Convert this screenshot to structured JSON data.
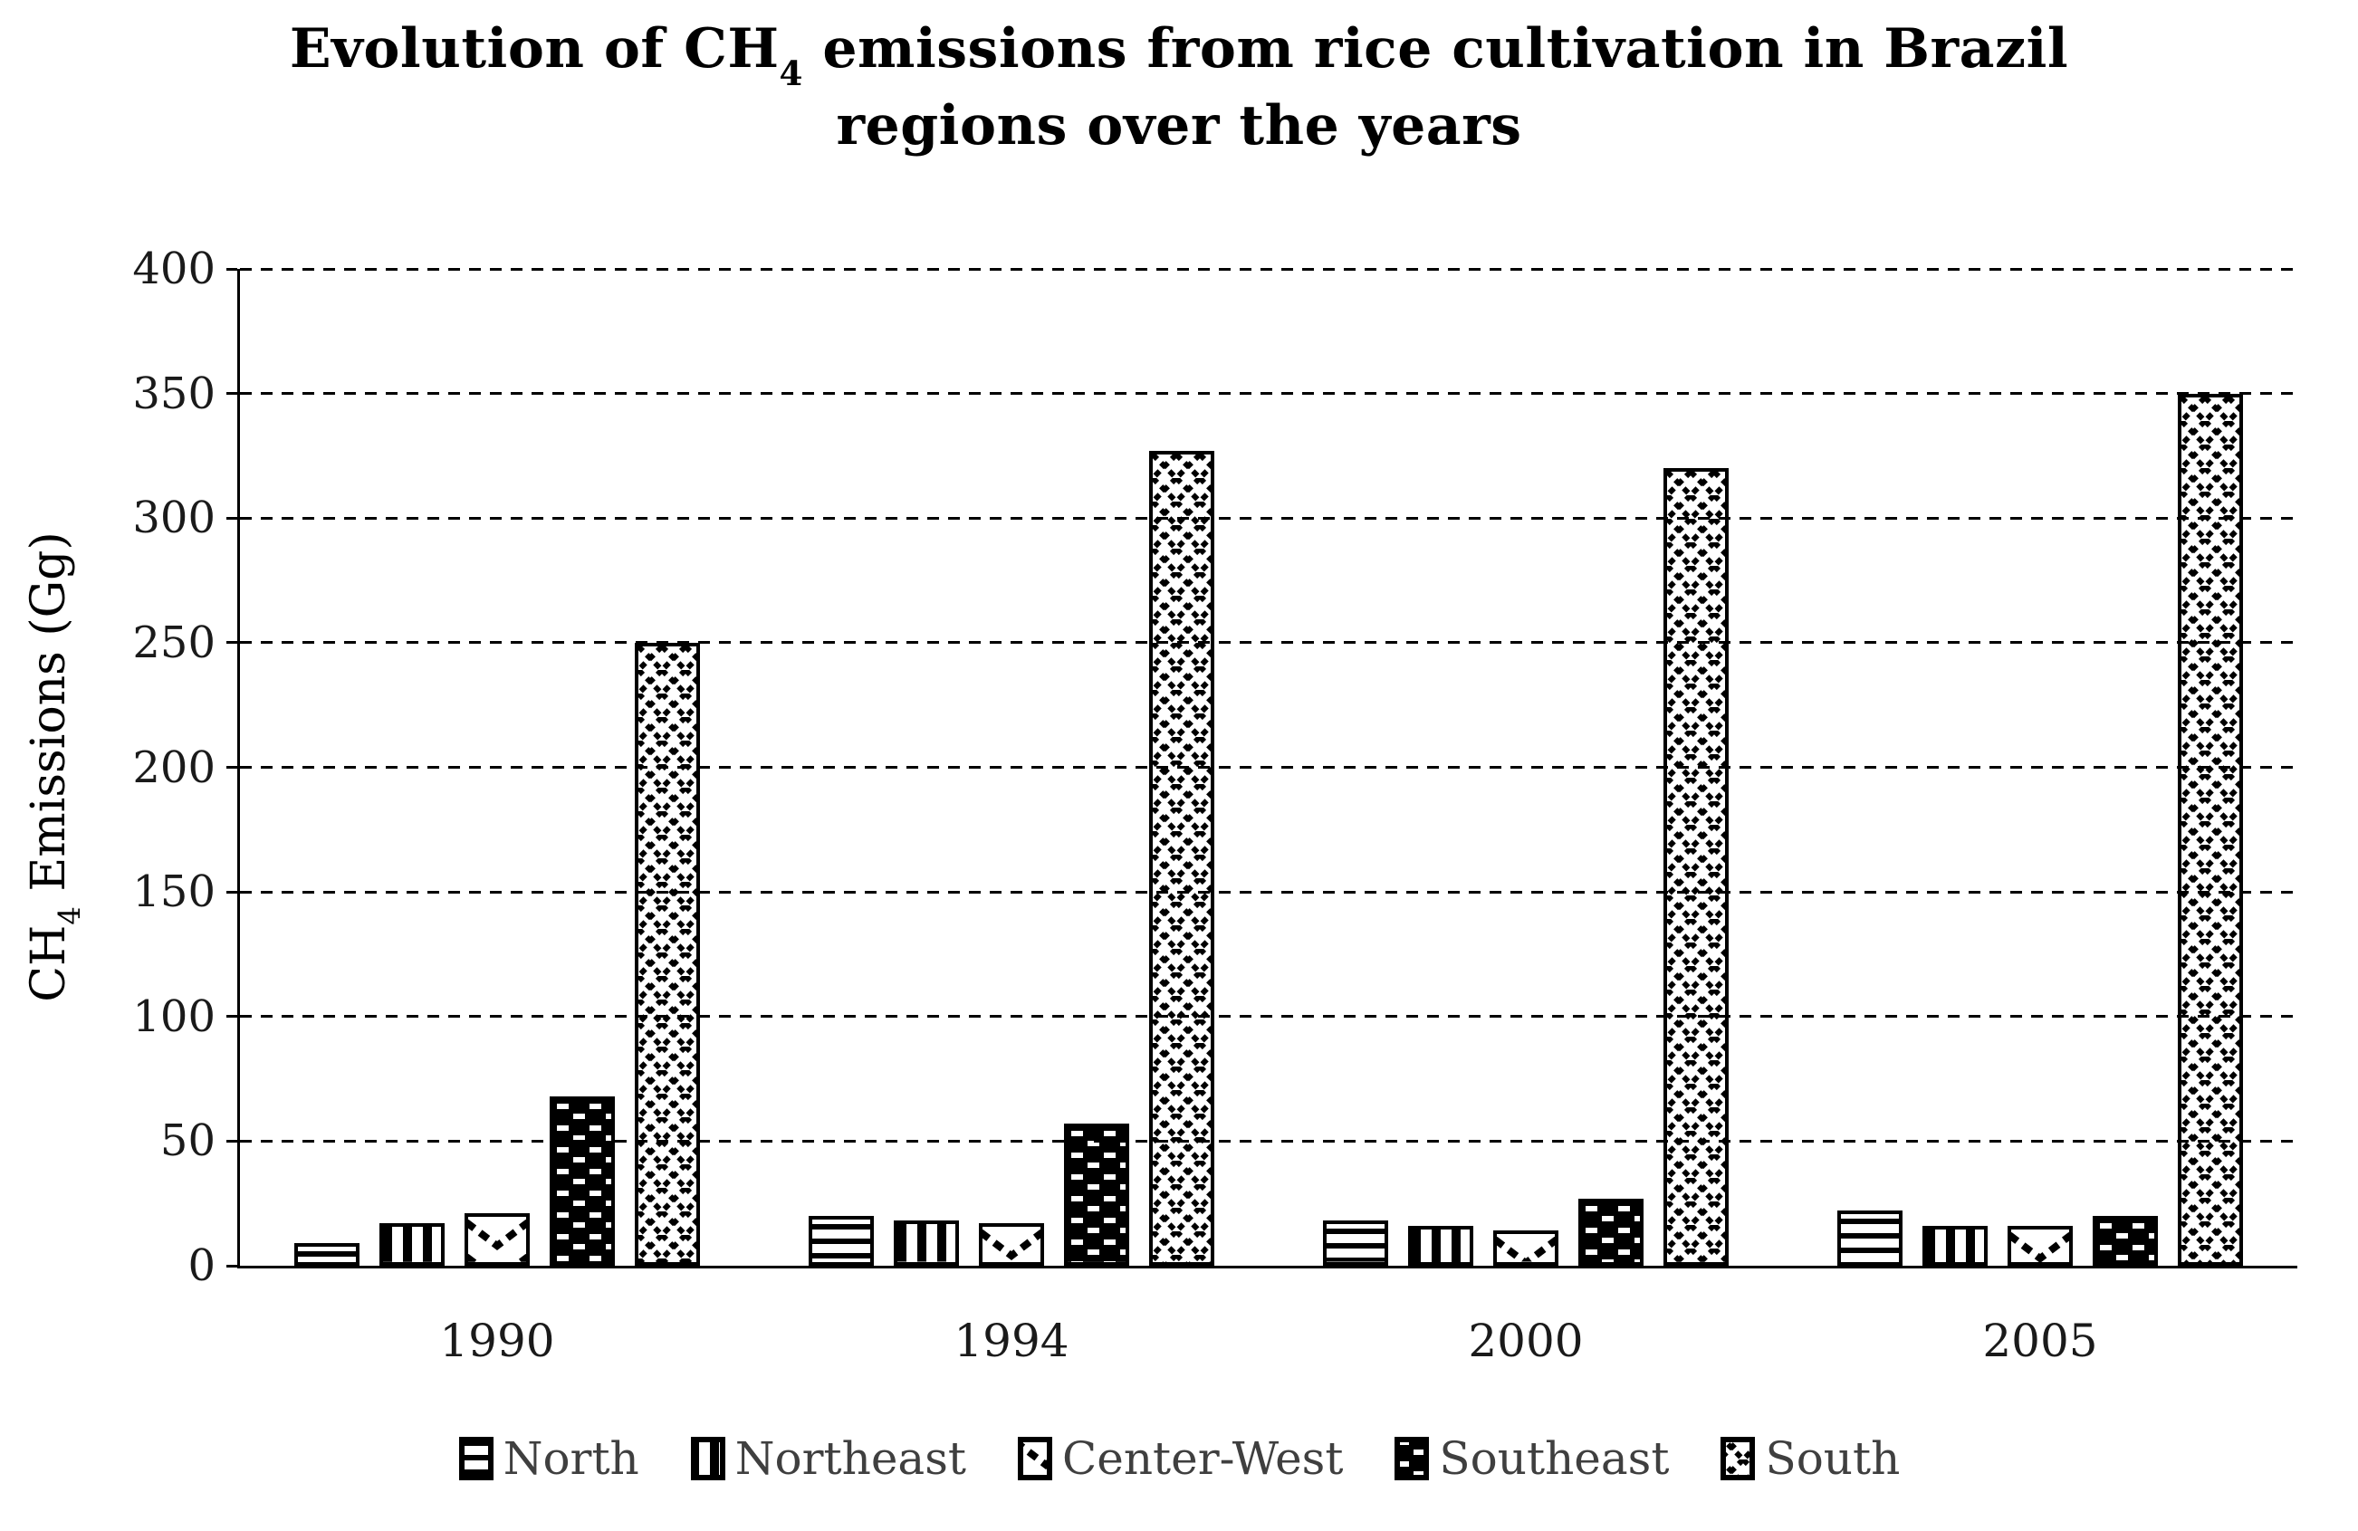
{
  "page": {
    "background": "#ffffff",
    "ink_color": "#000000",
    "tick_label_color": "#1a1a1a",
    "legend_text_color": "#3f3f3f"
  },
  "title": {
    "line1_prefix": "Evolution of CH",
    "line1_sub": "4",
    "line1_suffix": " emissions from rice cultivation in Brazil",
    "line2": "regions over the years"
  },
  "y_axis": {
    "label_prefix": "CH",
    "label_sub": "4",
    "label_suffix": " Emissions (Gg)",
    "tick_labels": [
      "400",
      "350",
      "300",
      "250",
      "200",
      "150",
      "100",
      "50",
      "0"
    ]
  },
  "x_axis": {
    "tick_labels": [
      "1990",
      "1994",
      "2000",
      "2005"
    ]
  },
  "legend": {
    "items": [
      "North",
      "Northeast",
      "Center-West",
      "Southeast",
      "South"
    ]
  },
  "chart_data": {
    "type": "bar",
    "title": "Evolution of CH4 emissions from rice cultivation in Brazil regions over the years",
    "xlabel": "",
    "ylabel": "CH4 Emissions (Gg)",
    "ylim": [
      0,
      400
    ],
    "ytick_step": 50,
    "grid": "horizontal dashed",
    "legend_position": "bottom",
    "bar_style": "black-and-white hatch patterns, black outline",
    "categories": [
      "1990",
      "1994",
      "2000",
      "2005"
    ],
    "series": [
      {
        "name": "North",
        "pattern": "horizontal-stripes",
        "values": [
          9,
          20,
          18,
          22
        ]
      },
      {
        "name": "Northeast",
        "pattern": "vertical-stripes",
        "values": [
          17,
          18,
          16,
          16
        ]
      },
      {
        "name": "Center-West",
        "pattern": "dashed-chevron",
        "values": [
          21,
          17,
          14,
          16
        ]
      },
      {
        "name": "Southeast",
        "pattern": "black-with-white-dashes",
        "values": [
          68,
          57,
          27,
          20
        ]
      },
      {
        "name": "South",
        "pattern": "dotted-diamond-crosshatch",
        "values": [
          250,
          327,
          320,
          350
        ]
      }
    ]
  }
}
